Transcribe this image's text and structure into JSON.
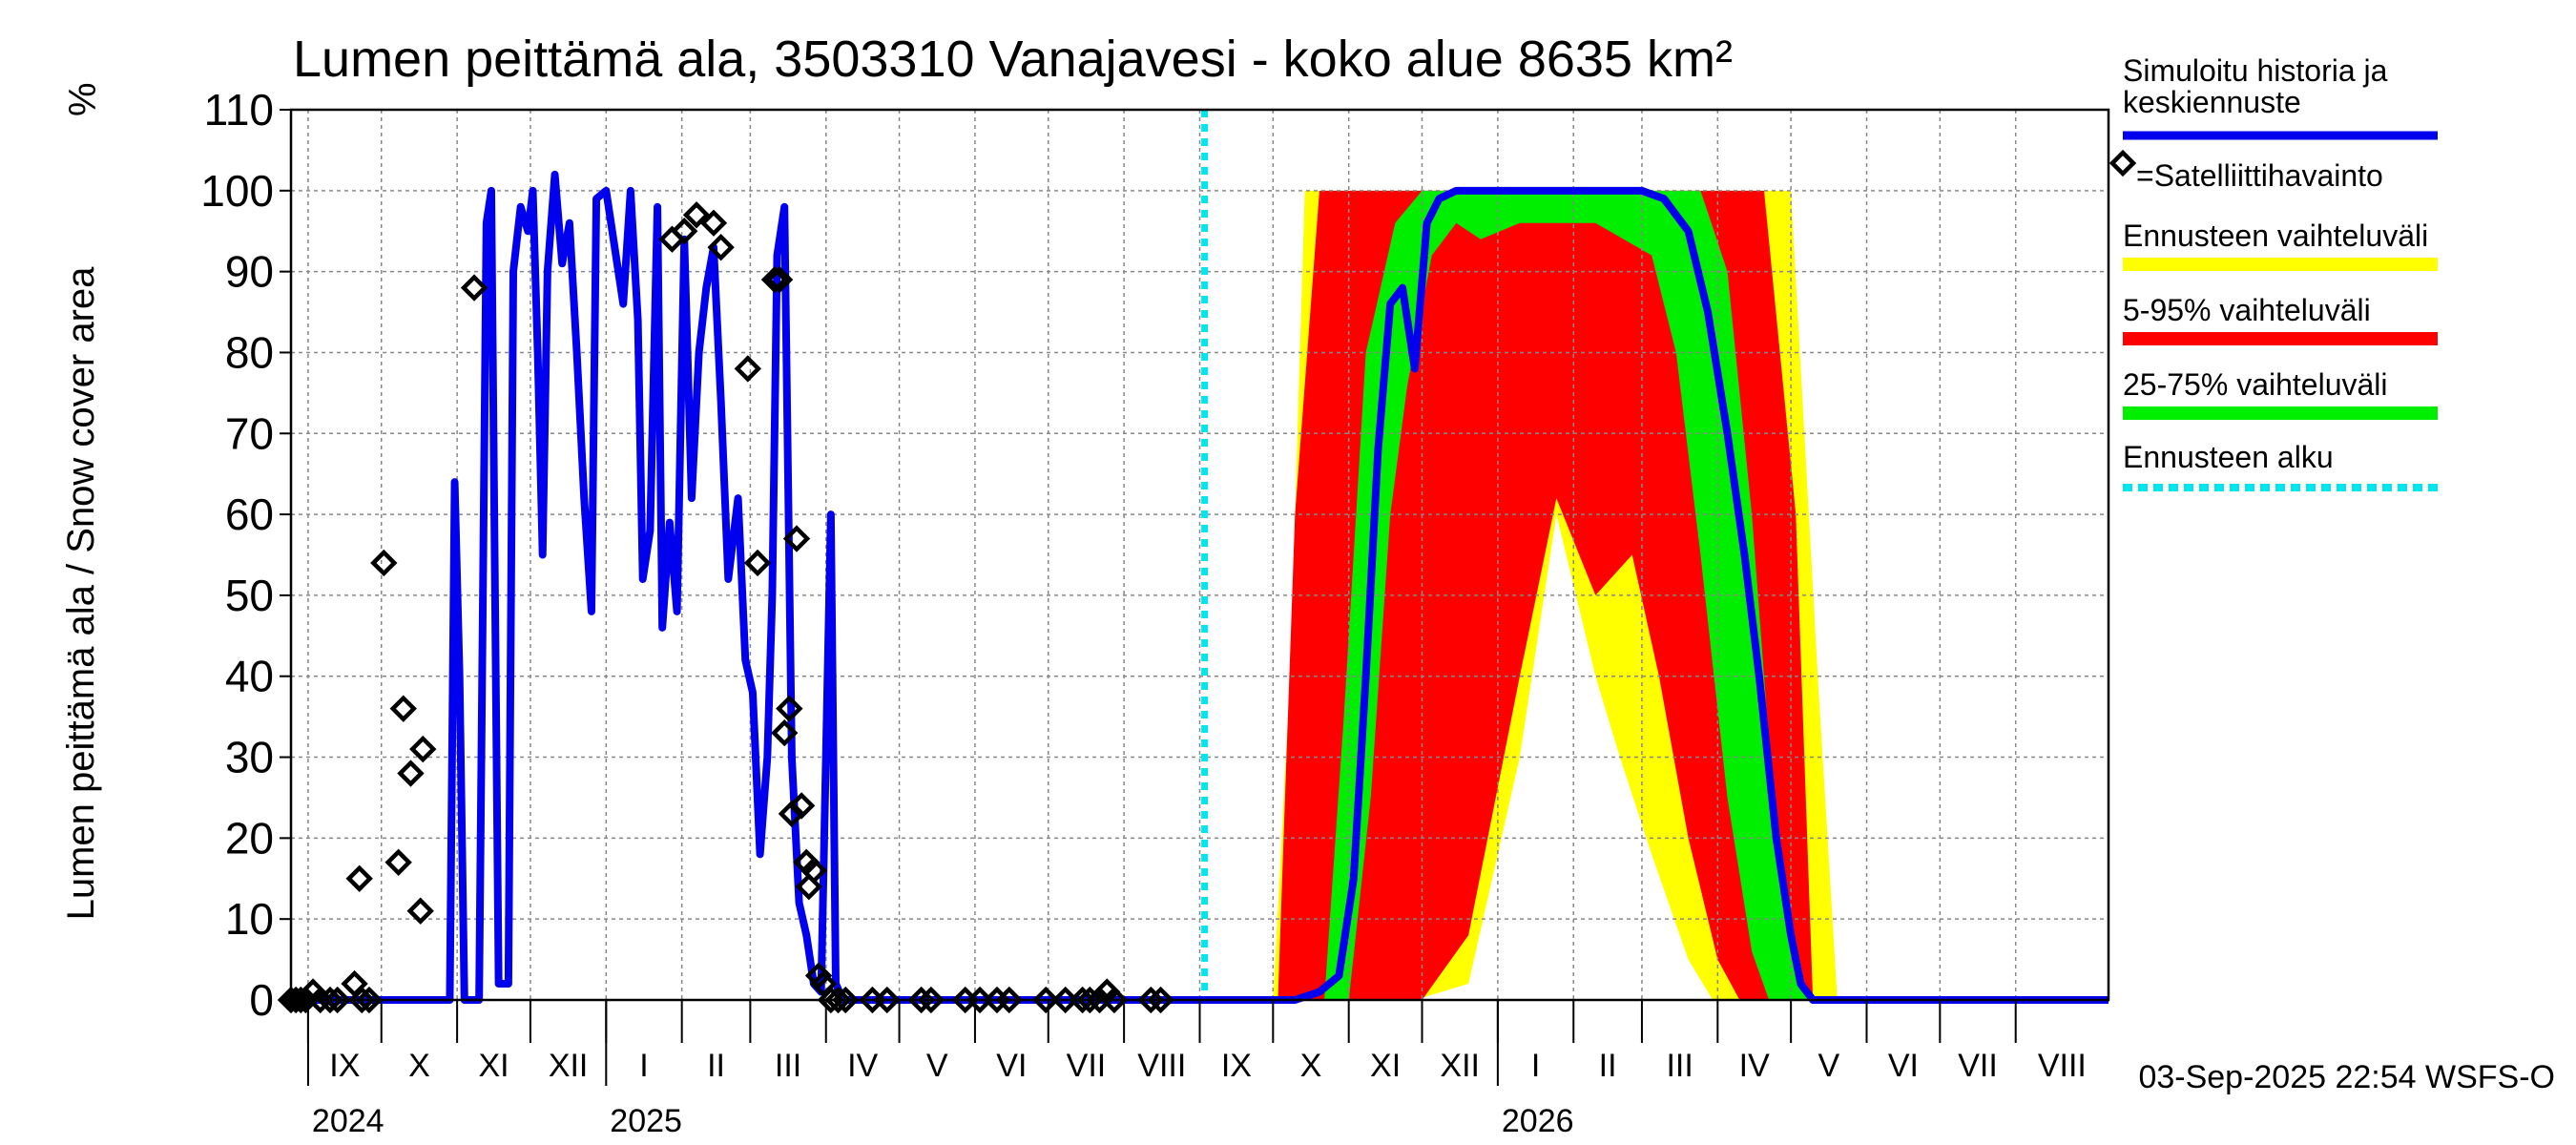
{
  "chart_data": {
    "type": "area",
    "title": "Lumen peittämä ala, 3503310 Vanajavesi - koko alue 8635 km²",
    "ylabel": "Lumen peittämä ala / Snow cover area",
    "yunit": "%",
    "ylim": [
      0,
      110
    ],
    "yticks": [
      0,
      10,
      20,
      30,
      40,
      50,
      60,
      70,
      80,
      90,
      100,
      110
    ],
    "xlim": [
      "2024-08-25",
      "2026-09-08"
    ],
    "grid": true,
    "month_labels": [
      {
        "label": "IX",
        "start": "2024-09-01"
      },
      {
        "label": "X",
        "start": "2024-10-01"
      },
      {
        "label": "XI",
        "start": "2024-11-01"
      },
      {
        "label": "XII",
        "start": "2024-12-01"
      },
      {
        "label": "I",
        "start": "2025-01-01"
      },
      {
        "label": "II",
        "start": "2025-02-01"
      },
      {
        "label": "III",
        "start": "2025-03-01"
      },
      {
        "label": "IV",
        "start": "2025-04-01"
      },
      {
        "label": "V",
        "start": "2025-05-01"
      },
      {
        "label": "VI",
        "start": "2025-06-01"
      },
      {
        "label": "VII",
        "start": "2025-07-01"
      },
      {
        "label": "VIII",
        "start": "2025-08-01"
      },
      {
        "label": "IX",
        "start": "2025-09-01"
      },
      {
        "label": "X",
        "start": "2025-10-01"
      },
      {
        "label": "XI",
        "start": "2025-11-01"
      },
      {
        "label": "XII",
        "start": "2025-12-01"
      },
      {
        "label": "I",
        "start": "2026-01-01"
      },
      {
        "label": "II",
        "start": "2026-02-01"
      },
      {
        "label": "III",
        "start": "2026-03-01"
      },
      {
        "label": "IV",
        "start": "2026-04-01"
      },
      {
        "label": "V",
        "start": "2026-05-01"
      },
      {
        "label": "VI",
        "start": "2026-06-01"
      },
      {
        "label": "VII",
        "start": "2026-07-01"
      },
      {
        "label": "VIII",
        "start": "2026-08-01"
      }
    ],
    "year_labels": [
      {
        "label": "2024",
        "start": "2024-09-01"
      },
      {
        "label": "2025",
        "start": "2025-01-01"
      },
      {
        "label": "2026",
        "start": "2026-01-01"
      }
    ],
    "forecast_start": "2025-09-03",
    "series": [
      {
        "name": "Simuloitu historia ja keskiennuste",
        "color": "#0000ee",
        "points": [
          [
            "2024-08-25",
            0
          ],
          [
            "2024-10-29",
            0
          ],
          [
            "2024-10-31",
            64
          ],
          [
            "2024-11-02",
            40
          ],
          [
            "2024-11-04",
            0
          ],
          [
            "2024-11-10",
            0
          ],
          [
            "2024-11-13",
            96
          ],
          [
            "2024-11-15",
            100
          ],
          [
            "2024-11-18",
            2
          ],
          [
            "2024-11-22",
            2
          ],
          [
            "2024-11-24",
            90
          ],
          [
            "2024-11-27",
            98
          ],
          [
            "2024-11-30",
            95
          ],
          [
            "2024-12-02",
            100
          ],
          [
            "2024-12-04",
            80
          ],
          [
            "2024-12-06",
            55
          ],
          [
            "2024-12-08",
            90
          ],
          [
            "2024-12-11",
            102
          ],
          [
            "2024-12-14",
            91
          ],
          [
            "2024-12-17",
            96
          ],
          [
            "2024-12-20",
            80
          ],
          [
            "2024-12-23",
            62
          ],
          [
            "2024-12-26",
            48
          ],
          [
            "2024-12-28",
            99
          ],
          [
            "2025-01-01",
            100
          ],
          [
            "2025-01-05",
            92
          ],
          [
            "2025-01-08",
            86
          ],
          [
            "2025-01-11",
            100
          ],
          [
            "2025-01-14",
            84
          ],
          [
            "2025-01-16",
            52
          ],
          [
            "2025-01-19",
            58
          ],
          [
            "2025-01-22",
            98
          ],
          [
            "2025-01-24",
            46
          ],
          [
            "2025-01-27",
            59
          ],
          [
            "2025-01-30",
            48
          ],
          [
            "2025-02-02",
            94
          ],
          [
            "2025-02-05",
            62
          ],
          [
            "2025-02-08",
            80
          ],
          [
            "2025-02-11",
            88
          ],
          [
            "2025-02-14",
            93
          ],
          [
            "2025-02-17",
            74
          ],
          [
            "2025-02-20",
            52
          ],
          [
            "2025-02-24",
            62
          ],
          [
            "2025-02-27",
            42
          ],
          [
            "2025-03-02",
            38
          ],
          [
            "2025-03-05",
            18
          ],
          [
            "2025-03-08",
            30
          ],
          [
            "2025-03-10",
            50
          ],
          [
            "2025-03-12",
            92
          ],
          [
            "2025-03-15",
            98
          ],
          [
            "2025-03-18",
            30
          ],
          [
            "2025-03-21",
            12
          ],
          [
            "2025-03-24",
            8
          ],
          [
            "2025-03-27",
            2
          ],
          [
            "2025-03-30",
            1
          ],
          [
            "2025-04-03",
            60
          ],
          [
            "2025-04-05",
            2
          ],
          [
            "2025-04-08",
            0
          ],
          [
            "2025-09-03",
            0
          ],
          [
            "2025-10-10",
            0
          ],
          [
            "2025-10-20",
            1
          ],
          [
            "2025-10-28",
            3
          ],
          [
            "2025-11-03",
            15
          ],
          [
            "2025-11-08",
            40
          ],
          [
            "2025-11-13",
            68
          ],
          [
            "2025-11-18",
            86
          ],
          [
            "2025-11-23",
            88
          ],
          [
            "2025-11-28",
            78
          ],
          [
            "2025-12-03",
            96
          ],
          [
            "2025-12-08",
            99
          ],
          [
            "2025-12-15",
            100
          ],
          [
            "2026-01-01",
            100
          ],
          [
            "2026-02-01",
            100
          ],
          [
            "2026-03-01",
            100
          ],
          [
            "2026-03-10",
            99
          ],
          [
            "2026-03-20",
            95
          ],
          [
            "2026-03-28",
            85
          ],
          [
            "2026-04-05",
            70
          ],
          [
            "2026-04-12",
            55
          ],
          [
            "2026-04-18",
            40
          ],
          [
            "2026-04-25",
            20
          ],
          [
            "2026-05-01",
            8
          ],
          [
            "2026-05-05",
            2
          ],
          [
            "2026-05-10",
            0
          ],
          [
            "2026-09-08",
            0
          ]
        ]
      },
      {
        "name": "Ennusteen vaihteluväli",
        "color": "#ffff00",
        "upper": [
          [
            "2025-09-03",
            0
          ],
          [
            "2025-10-01",
            0
          ],
          [
            "2025-10-08",
            40
          ],
          [
            "2025-10-14",
            100
          ],
          [
            "2026-05-01",
            100
          ],
          [
            "2026-05-12",
            40
          ],
          [
            "2026-05-20",
            0
          ],
          [
            "2026-09-08",
            0
          ]
        ],
        "lower": [
          [
            "2025-09-03",
            0
          ],
          [
            "2025-11-28",
            0
          ],
          [
            "2025-12-20",
            2
          ],
          [
            "2026-01-10",
            30
          ],
          [
            "2026-01-25",
            60
          ],
          [
            "2026-02-10",
            40
          ],
          [
            "2026-02-20",
            30
          ],
          [
            "2026-03-05",
            18
          ],
          [
            "2026-03-20",
            5
          ],
          [
            "2026-03-30",
            0
          ],
          [
            "2026-09-08",
            0
          ]
        ]
      },
      {
        "name": "5-95% vaihteluväli",
        "color": "#ff0000",
        "upper": [
          [
            "2025-09-03",
            0
          ],
          [
            "2025-10-03",
            0
          ],
          [
            "2025-10-10",
            60
          ],
          [
            "2025-10-20",
            100
          ],
          [
            "2026-04-20",
            100
          ],
          [
            "2026-05-03",
            60
          ],
          [
            "2026-05-10",
            0
          ],
          [
            "2026-09-08",
            0
          ]
        ],
        "lower": [
          [
            "2025-09-03",
            0
          ],
          [
            "2025-12-01",
            0
          ],
          [
            "2025-12-20",
            8
          ],
          [
            "2026-01-10",
            40
          ],
          [
            "2026-01-25",
            62
          ],
          [
            "2026-02-10",
            50
          ],
          [
            "2026-02-25",
            55
          ],
          [
            "2026-03-08",
            40
          ],
          [
            "2026-03-20",
            20
          ],
          [
            "2026-04-01",
            5
          ],
          [
            "2026-04-10",
            0
          ],
          [
            "2026-09-08",
            0
          ]
        ]
      },
      {
        "name": "25-75% vaihteluväli",
        "color": "#00ee00",
        "upper": [
          [
            "2025-09-03",
            0
          ],
          [
            "2025-10-22",
            0
          ],
          [
            "2025-10-30",
            35
          ],
          [
            "2025-11-08",
            80
          ],
          [
            "2025-11-20",
            96
          ],
          [
            "2025-12-01",
            100
          ],
          [
            "2026-03-25",
            100
          ],
          [
            "2026-04-05",
            90
          ],
          [
            "2026-04-15",
            60
          ],
          [
            "2026-04-25",
            20
          ],
          [
            "2026-05-04",
            2
          ],
          [
            "2026-05-08",
            0
          ],
          [
            "2026-09-08",
            0
          ]
        ],
        "lower": [
          [
            "2025-09-03",
            0
          ],
          [
            "2025-11-01",
            0
          ],
          [
            "2025-11-10",
            25
          ],
          [
            "2025-11-18",
            60
          ],
          [
            "2025-11-25",
            76
          ],
          [
            "2025-12-05",
            92
          ],
          [
            "2025-12-15",
            96
          ],
          [
            "2025-12-25",
            94
          ],
          [
            "2026-01-10",
            96
          ],
          [
            "2026-02-10",
            96
          ],
          [
            "2026-03-05",
            92
          ],
          [
            "2026-03-15",
            80
          ],
          [
            "2026-03-25",
            55
          ],
          [
            "2026-04-05",
            25
          ],
          [
            "2026-04-15",
            6
          ],
          [
            "2026-04-22",
            0
          ],
          [
            "2026-09-08",
            0
          ]
        ]
      }
    ],
    "observations": {
      "name": "=Satelliittihavainto",
      "points": [
        [
          "2024-08-25",
          0
        ],
        [
          "2024-08-27",
          0
        ],
        [
          "2024-08-29",
          0
        ],
        [
          "2024-08-31",
          0
        ],
        [
          "2024-09-03",
          1
        ],
        [
          "2024-09-06",
          0
        ],
        [
          "2024-09-10",
          0
        ],
        [
          "2024-09-13",
          0
        ],
        [
          "2024-09-20",
          2
        ],
        [
          "2024-09-23",
          0
        ],
        [
          "2024-09-26",
          0
        ],
        [
          "2024-09-22",
          15
        ],
        [
          "2024-10-02",
          54
        ],
        [
          "2024-10-08",
          17
        ],
        [
          "2024-10-10",
          36
        ],
        [
          "2024-10-13",
          28
        ],
        [
          "2024-10-17",
          11
        ],
        [
          "2024-10-18",
          31
        ],
        [
          "2024-11-08",
          88
        ],
        [
          "2025-01-28",
          94
        ],
        [
          "2025-02-02",
          95
        ],
        [
          "2025-02-07",
          97
        ],
        [
          "2025-02-14",
          96
        ],
        [
          "2025-02-17",
          93
        ],
        [
          "2025-02-28",
          78
        ],
        [
          "2025-03-04",
          54
        ],
        [
          "2025-03-11",
          89
        ],
        [
          "2025-03-13",
          89
        ],
        [
          "2025-03-15",
          33
        ],
        [
          "2025-03-17",
          36
        ],
        [
          "2025-03-18",
          23
        ],
        [
          "2025-03-20",
          57
        ],
        [
          "2025-03-22",
          24
        ],
        [
          "2025-03-24",
          17
        ],
        [
          "2025-03-25",
          14
        ],
        [
          "2025-03-27",
          16
        ],
        [
          "2025-03-29",
          3
        ],
        [
          "2025-03-31",
          2
        ],
        [
          "2025-04-03",
          0
        ],
        [
          "2025-04-06",
          0
        ],
        [
          "2025-04-09",
          0
        ],
        [
          "2025-04-20",
          0
        ],
        [
          "2025-04-26",
          0
        ],
        [
          "2025-05-10",
          0
        ],
        [
          "2025-05-14",
          0
        ],
        [
          "2025-05-28",
          0
        ],
        [
          "2025-06-03",
          0
        ],
        [
          "2025-06-10",
          0
        ],
        [
          "2025-06-15",
          0
        ],
        [
          "2025-06-30",
          0
        ],
        [
          "2025-07-08",
          0
        ],
        [
          "2025-07-15",
          0
        ],
        [
          "2025-07-18",
          0
        ],
        [
          "2025-07-22",
          0
        ],
        [
          "2025-07-25",
          1
        ],
        [
          "2025-07-28",
          0
        ],
        [
          "2025-08-12",
          0
        ],
        [
          "2025-08-16",
          0
        ]
      ]
    },
    "legend": [
      {
        "label": "Simuloitu historia ja keskiennuste",
        "color": "#0000ee",
        "style": "line"
      },
      {
        "label": "=Satelliittihavainto",
        "color": "#000000",
        "style": "diamond"
      },
      {
        "label": "Ennusteen vaihteluväli",
        "color": "#ffff00",
        "style": "line"
      },
      {
        "label": "5-95% vaihteluväli",
        "color": "#ff0000",
        "style": "line"
      },
      {
        "label": "25-75% vaihteluväli",
        "color": "#00ee00",
        "style": "line"
      },
      {
        "label": "Ennusteen alku",
        "color": "#00e5ee",
        "style": "dashed"
      }
    ],
    "legend_placement": "right",
    "footer": "03-Sep-2025 22:54 WSFS-O"
  }
}
